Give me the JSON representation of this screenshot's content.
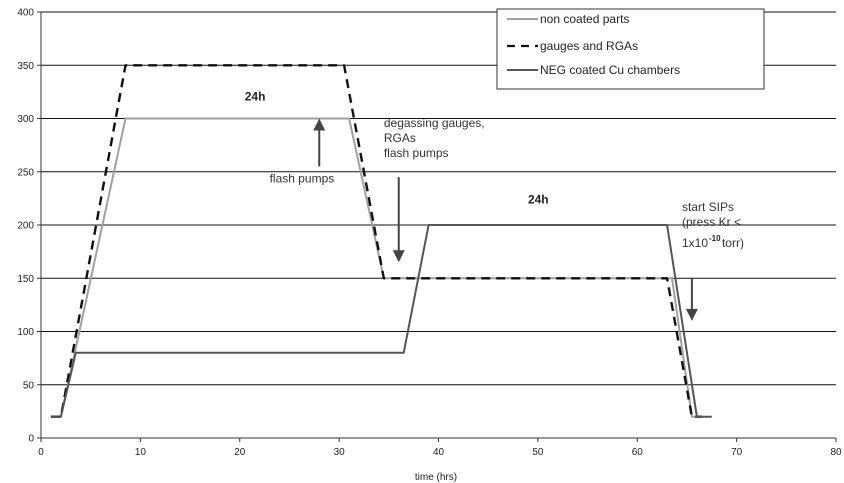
{
  "chart_data": {
    "type": "line",
    "title": "",
    "xlabel": "time (hrs)",
    "ylabel": "",
    "xlim": [
      0,
      80
    ],
    "ylim": [
      0,
      400
    ],
    "x_ticks": [
      0,
      10,
      20,
      30,
      40,
      50,
      60,
      70,
      80
    ],
    "y_ticks": [
      0,
      50,
      100,
      150,
      200,
      250,
      300,
      350,
      400
    ],
    "grid": "horizontal",
    "legend_position": "top-right",
    "series": [
      {
        "name": "non coated parts",
        "style": "solid",
        "color": "#a0a0a0",
        "points": [
          [
            1,
            20
          ],
          [
            2,
            20
          ],
          [
            8.5,
            300
          ],
          [
            31,
            300
          ],
          [
            34.5,
            150
          ],
          [
            63.5,
            150
          ],
          [
            65.5,
            20
          ],
          [
            66.5,
            20
          ]
        ]
      },
      {
        "name": "gauges and RGAs",
        "style": "dashed",
        "color": "#111111",
        "points": [
          [
            1,
            20
          ],
          [
            2,
            20
          ],
          [
            8.5,
            350
          ],
          [
            30.5,
            350
          ],
          [
            34.5,
            150
          ],
          [
            63,
            150
          ],
          [
            65.5,
            20
          ],
          [
            66.5,
            20
          ]
        ]
      },
      {
        "name": "NEG coated Cu chambers",
        "style": "solid",
        "color": "#555555",
        "points": [
          [
            1,
            20
          ],
          [
            2,
            20
          ],
          [
            3.5,
            80
          ],
          [
            36.5,
            80
          ],
          [
            39,
            200
          ],
          [
            63,
            200
          ],
          [
            66,
            20
          ],
          [
            67.5,
            20
          ]
        ]
      }
    ],
    "annotations": [
      {
        "text": "24h",
        "x": 20.5,
        "y": 317,
        "bold": true
      },
      {
        "text": "flash pumps",
        "x": 23,
        "y": 240,
        "arrow": {
          "from": [
            28,
            255
          ],
          "to": [
            28,
            300
          ]
        }
      },
      {
        "lines": [
          "degassing gauges,",
          "RGAs",
          "flash pumps"
        ],
        "x": 34.5,
        "y": 292,
        "arrow": {
          "from": [
            36,
            245
          ],
          "to": [
            36,
            165
          ]
        }
      },
      {
        "text": "24h",
        "x": 49,
        "y": 220,
        "bold": true
      },
      {
        "lines": [
          "start SIPs",
          "(press Kr <",
          "1x10",
          "-10",
          "torr)"
        ],
        "x": 64.5,
        "y": 213,
        "arrow": {
          "from": [
            65.5,
            150
          ],
          "to": [
            65.5,
            110
          ]
        }
      }
    ]
  }
}
